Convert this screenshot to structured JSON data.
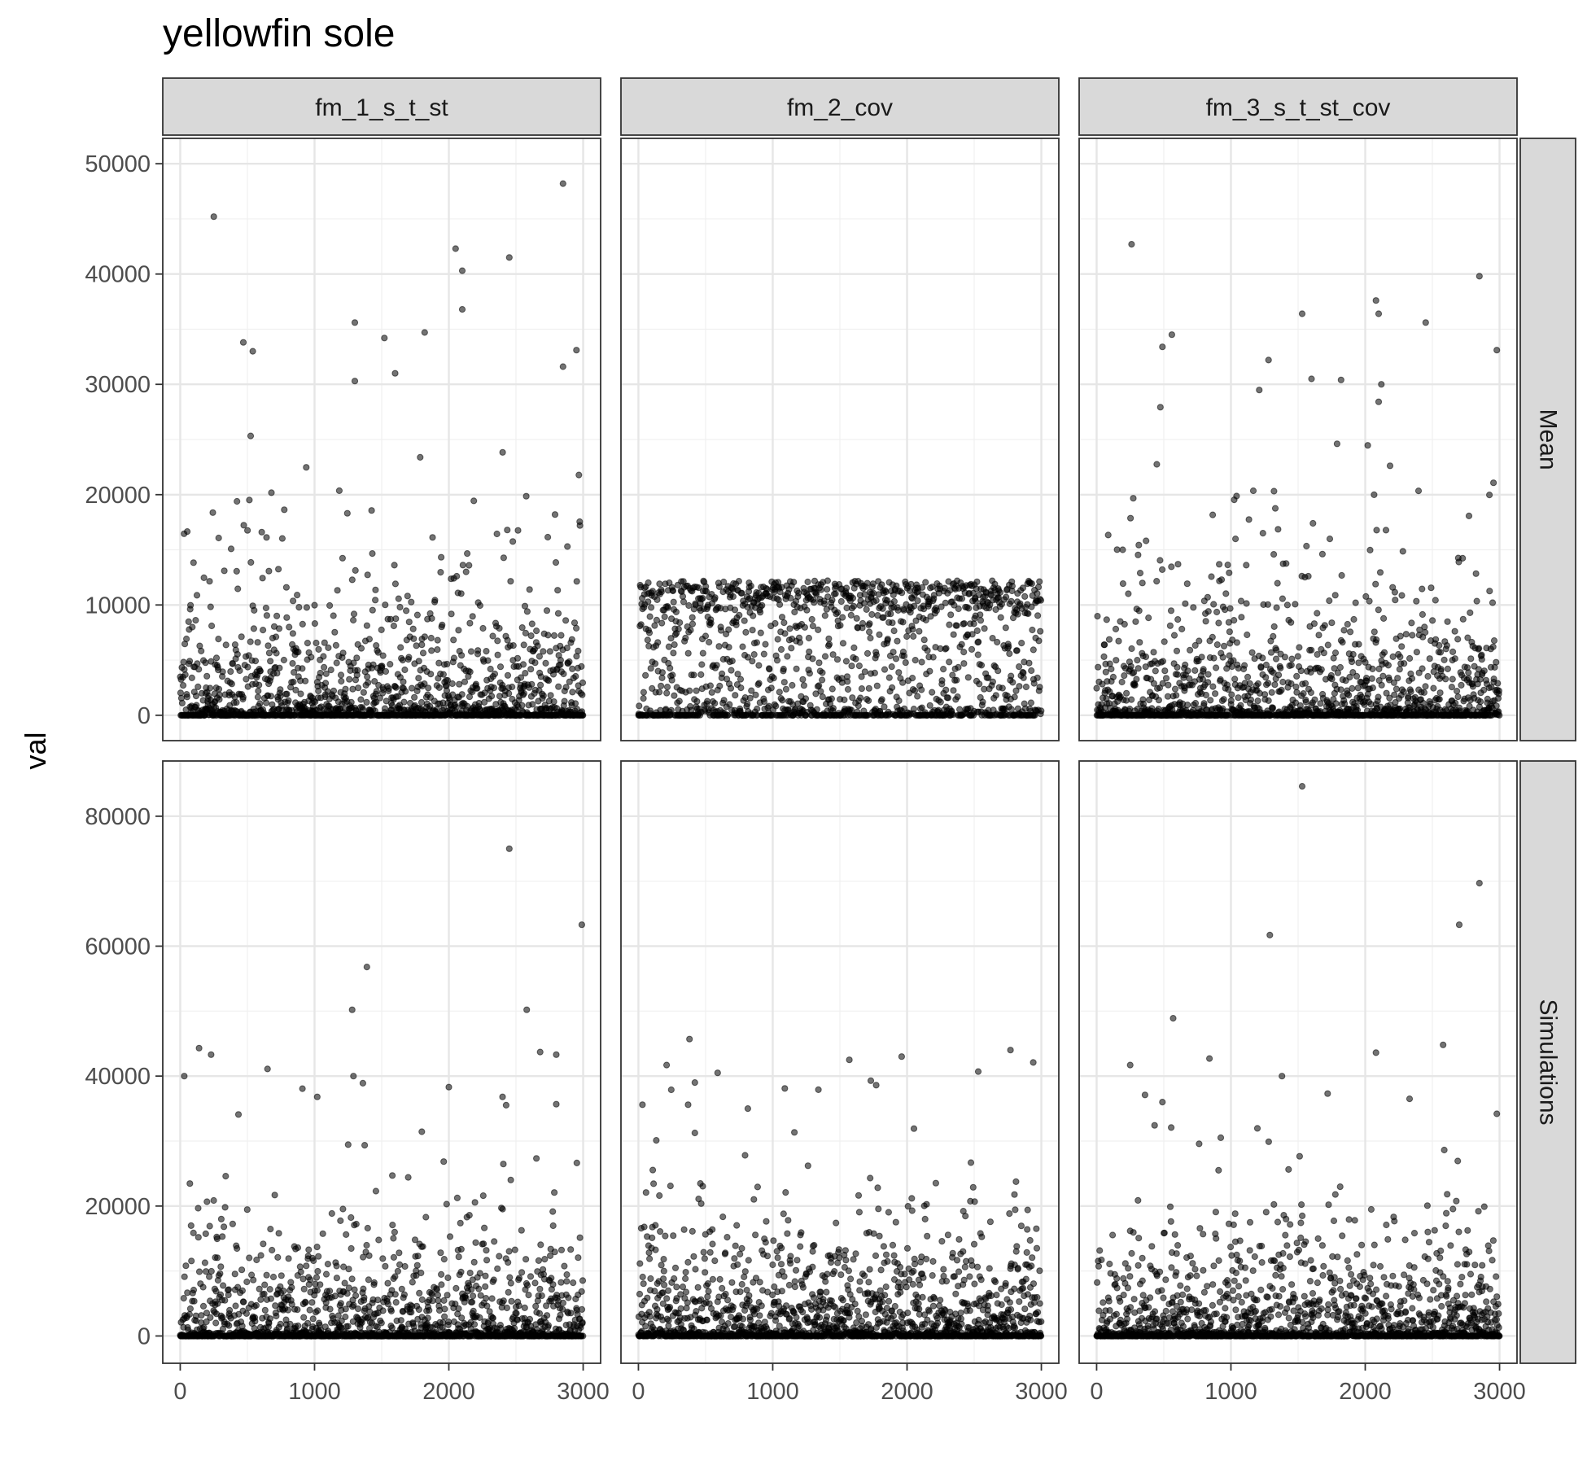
{
  "chart_data": {
    "type": "scatter",
    "title": "yellowfin sole",
    "ylabel": "val",
    "xlabel": "",
    "facet_columns": [
      "fm_1_s_t_st",
      "fm_2_cov",
      "fm_3_s_t_st_cov"
    ],
    "facet_rows": [
      "Mean",
      "Simulations"
    ],
    "xlim": [
      -130,
      3130
    ],
    "xticks": [
      0,
      1000,
      2000,
      3000
    ],
    "x_range": [
      0,
      3000
    ],
    "rows": {
      "Mean": {
        "ylim": [
          -2300,
          52300
        ],
        "yticks": [
          0,
          10000,
          20000,
          30000,
          40000,
          50000
        ]
      },
      "Simulations": {
        "ylim": [
          -4200,
          88500
        ],
        "yticks": [
          0,
          20000,
          40000,
          60000,
          80000
        ]
      }
    },
    "grid": true,
    "point_color": "#000000",
    "point_opacity": 0.55,
    "panel_series": [
      {
        "column": "fm_1_s_t_st",
        "row": "Mean",
        "n": 1500,
        "max": 48200,
        "shape": 0.85,
        "cap": 30000,
        "zero_share": 0.42,
        "outliers": [
          [
            250,
            45200
          ],
          [
            2850,
            48200
          ],
          [
            2050,
            42300
          ],
          [
            2450,
            41500
          ],
          [
            2100,
            40300
          ],
          [
            2100,
            36800
          ],
          [
            1300,
            35600
          ],
          [
            470,
            33800
          ],
          [
            540,
            33000
          ],
          [
            1520,
            34200
          ],
          [
            1820,
            34700
          ],
          [
            2950,
            33100
          ],
          [
            1600,
            31000
          ],
          [
            2850,
            31600
          ],
          [
            1300,
            30300
          ]
        ]
      },
      {
        "column": "fm_2_cov",
        "row": "Mean",
        "n": 1400,
        "max": 13300,
        "shape": 1.0,
        "cap": 13300,
        "zero_share": 0.3,
        "band": [
          9500,
          12200
        ],
        "outliers": []
      },
      {
        "column": "fm_3_s_t_st_cov",
        "row": "Mean",
        "n": 1500,
        "max": 42700,
        "shape": 0.9,
        "cap": 30000,
        "zero_share": 0.42,
        "outliers": [
          [
            260,
            42700
          ],
          [
            2850,
            39800
          ],
          [
            2080,
            37600
          ],
          [
            2100,
            36400
          ],
          [
            1530,
            36400
          ],
          [
            2450,
            35600
          ],
          [
            560,
            34500
          ],
          [
            490,
            33400
          ],
          [
            2980,
            33100
          ],
          [
            1280,
            32200
          ],
          [
            1600,
            30500
          ],
          [
            1820,
            30400
          ],
          [
            2120,
            30000
          ]
        ]
      },
      {
        "column": "fm_1_s_t_st",
        "row": "Simulations",
        "n": 1600,
        "max": 75000,
        "shape": 0.65,
        "cap": 40000,
        "zero_share": 0.45,
        "outliers": [
          [
            2450,
            75000
          ],
          [
            2990,
            63300
          ],
          [
            1390,
            56800
          ],
          [
            1280,
            50200
          ],
          [
            2580,
            50200
          ],
          [
            140,
            44300
          ],
          [
            230,
            43300
          ],
          [
            2680,
            43700
          ],
          [
            2800,
            43300
          ],
          [
            30,
            40000
          ],
          [
            650,
            41100
          ],
          [
            1290,
            40000
          ],
          [
            1360,
            38900
          ],
          [
            1020,
            36800
          ],
          [
            2400,
            36800
          ],
          [
            2000,
            38300
          ]
        ]
      },
      {
        "column": "fm_2_cov",
        "row": "Simulations",
        "n": 1600,
        "max": 45700,
        "shape": 0.75,
        "cap": 40000,
        "zero_share": 0.4,
        "outliers": [
          [
            380,
            45700
          ],
          [
            590,
            40500
          ],
          [
            210,
            41700
          ],
          [
            1570,
            42500
          ],
          [
            1960,
            43000
          ],
          [
            2770,
            44000
          ],
          [
            2940,
            42100
          ],
          [
            2530,
            40700
          ],
          [
            1730,
            39300
          ],
          [
            1770,
            38600
          ],
          [
            1090,
            38100
          ],
          [
            1340,
            37900
          ],
          [
            420,
            39000
          ],
          [
            370,
            35600
          ],
          [
            30,
            35600
          ]
        ]
      },
      {
        "column": "fm_3_s_t_st_cov",
        "row": "Simulations",
        "n": 1600,
        "max": 84600,
        "shape": 0.65,
        "cap": 38000,
        "zero_share": 0.45,
        "outliers": [
          [
            1530,
            84600
          ],
          [
            2850,
            69700
          ],
          [
            2700,
            63300
          ],
          [
            1290,
            61700
          ],
          [
            570,
            48900
          ],
          [
            2580,
            44800
          ],
          [
            840,
            42700
          ],
          [
            2080,
            43600
          ],
          [
            250,
            41700
          ],
          [
            1380,
            40000
          ],
          [
            360,
            37100
          ],
          [
            1720,
            37300
          ],
          [
            490,
            36000
          ],
          [
            2330,
            36500
          ],
          [
            2980,
            34200
          ]
        ]
      }
    ]
  }
}
